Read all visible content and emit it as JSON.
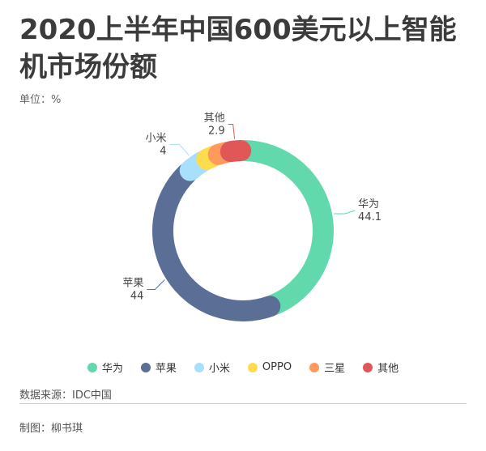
{
  "title": "2020上半年中国600美元以上智能机市场份额",
  "unit": "单位：%",
  "source": "数据来源：IDC中国",
  "author": "制图：柳书琪",
  "colors": {
    "华为": "#62d9ad",
    "苹果": "#5b6e96",
    "小米": "#a8dffa",
    "OPPO": "#ffdc4c",
    "三星": "#ff9a5c",
    "其他": "#e15656"
  },
  "chart_data": {
    "type": "pie",
    "variant": "donut",
    "unit": "%",
    "categories": [
      "华为",
      "苹果",
      "小米",
      "OPPO",
      "三星",
      "其他"
    ],
    "values": [
      44.1,
      44,
      4,
      2.5,
      2.5,
      2.9
    ],
    "data_labels": [
      {
        "name": "华为",
        "value": "44.1"
      },
      {
        "name": "苹果",
        "value": "44"
      },
      {
        "name": "小米",
        "value": "4"
      },
      {
        "name": "其他",
        "value": "2.9"
      }
    ],
    "legend_position": "bottom"
  }
}
